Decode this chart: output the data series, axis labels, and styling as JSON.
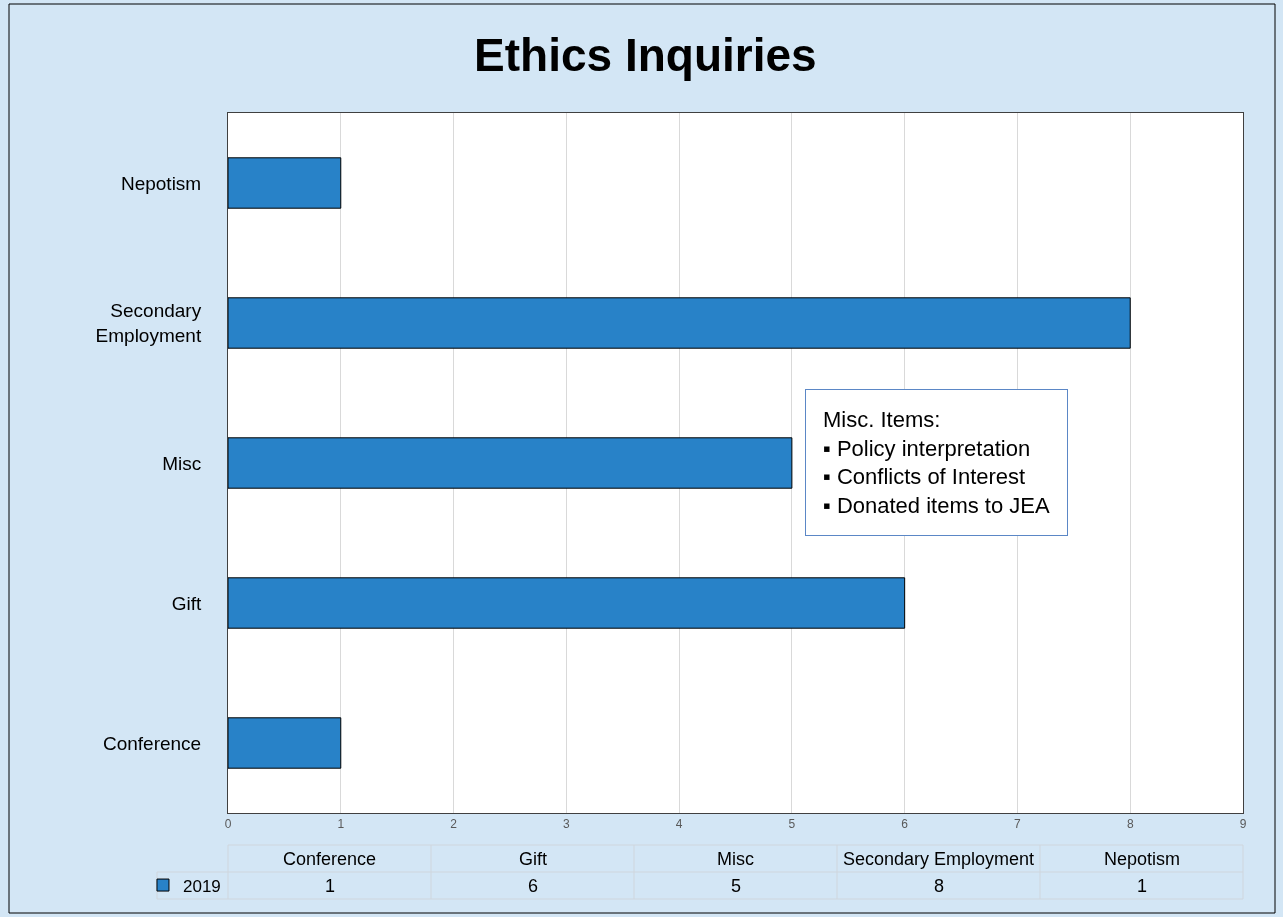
{
  "chart_data": {
    "type": "bar",
    "title": "Ethics Inquiries",
    "orientation": "horizontal",
    "categories": [
      "Nepotism",
      "Secondary Employment",
      "Misc",
      "Gift",
      "Conference"
    ],
    "series": [
      {
        "name": "2019",
        "color": "#2882c8",
        "values": [
          1,
          8,
          5,
          6,
          1
        ]
      }
    ],
    "xlim": [
      0,
      9
    ],
    "xticks": [
      0,
      1,
      2,
      3,
      4,
      5,
      6,
      7,
      8,
      9
    ],
    "grid": "x",
    "legend": "bottom",
    "annotations": [
      "Misc. Items:\n▪ Policy interpretation\n▪ Conflicts of Interest\n▪ Donated items to JEA",
      "1",
      "6",
      "5",
      "8",
      "1"
    ]
  }
}
